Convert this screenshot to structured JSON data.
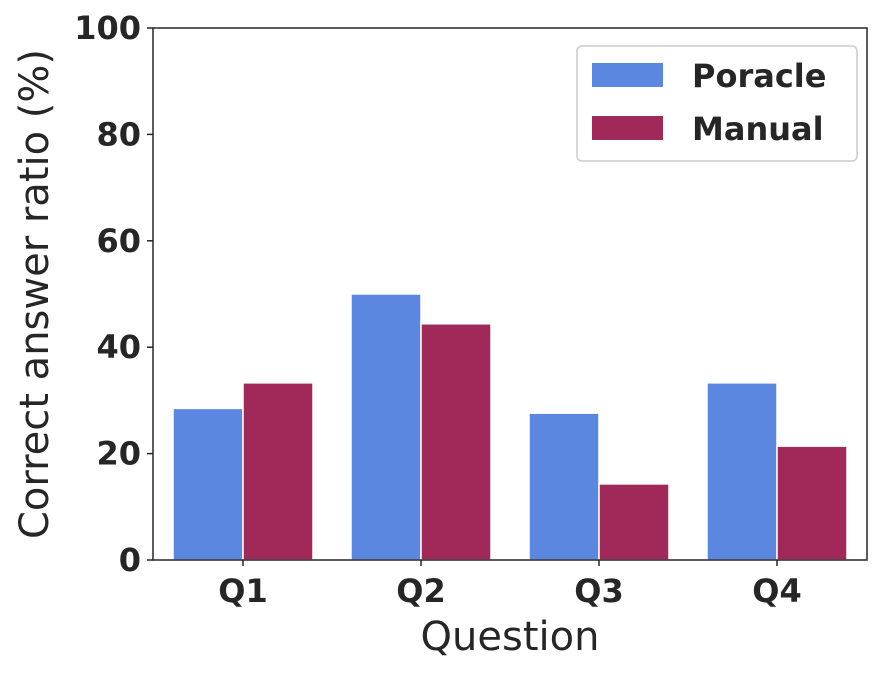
{
  "chart_data": {
    "type": "bar",
    "title": "",
    "xlabel": "Question",
    "ylabel": "Correct answer ratio (%)",
    "categories": [
      "Q1",
      "Q2",
      "Q3",
      "Q4"
    ],
    "series": [
      {
        "name": "Poracle",
        "color": "#5B87E0",
        "values": [
          28.5,
          50.0,
          27.6,
          33.3
        ]
      },
      {
        "name": "Manual",
        "color": "#A0295A",
        "values": [
          33.3,
          44.4,
          14.3,
          21.4
        ]
      }
    ],
    "ylim": [
      0,
      100
    ],
    "yticks": [
      "0",
      "20",
      "40",
      "60",
      "80",
      "100"
    ],
    "grid": false,
    "legend_position": "top-right"
  }
}
